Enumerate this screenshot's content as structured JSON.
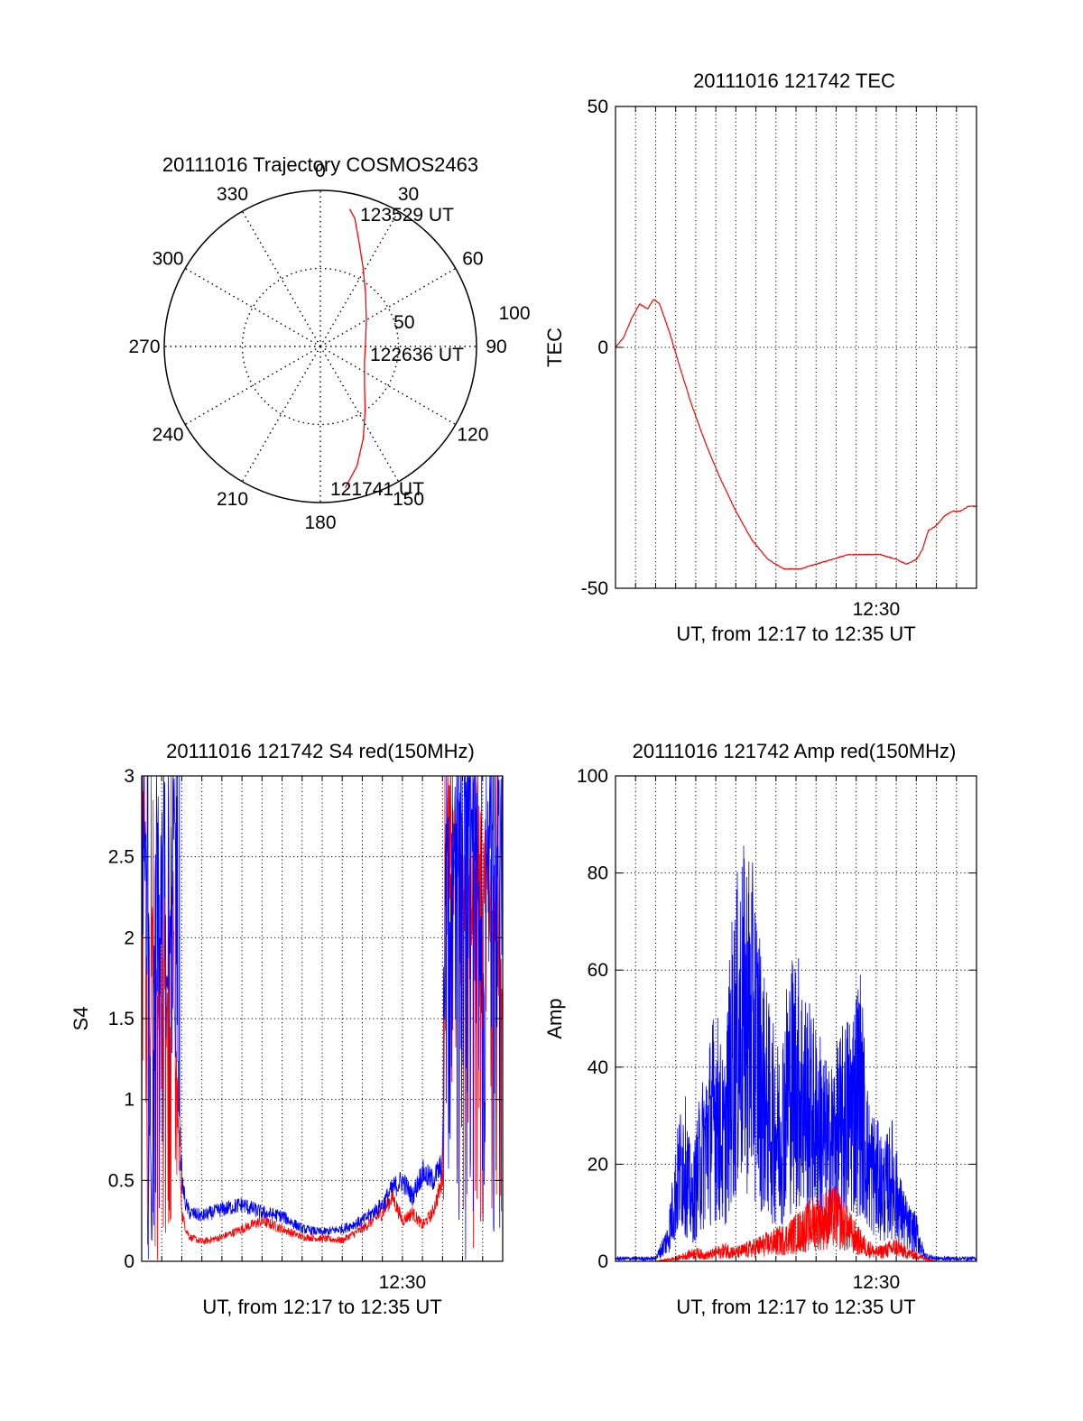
{
  "colors": {
    "primary": "#ff0000",
    "secondary": "#0000ff",
    "axis": "#000000",
    "grid": "#000000"
  },
  "chart_data": [
    {
      "id": "trajectory",
      "type": "scatter",
      "projection": "polar",
      "title": "20111016 Trajectory COSMOS2463",
      "azimuth_labels": [
        "0",
        "30",
        "60",
        "90",
        "120",
        "150",
        "180",
        "210",
        "240",
        "270",
        "300",
        "330"
      ],
      "radius_labels": [
        "50",
        "100"
      ],
      "rlim": [
        0,
        100
      ],
      "grid": true,
      "annotations": [
        "123529 UT",
        "122636 UT",
        "121741 UT"
      ],
      "series": [
        {
          "color": "#ff0000",
          "azimuth_deg": [
            170,
            163,
            155,
            145,
            132,
            110,
            85,
            60,
            40,
            28,
            20,
            15,
            12
          ],
          "zenith_dist": [
            92,
            80,
            65,
            50,
            38,
            30,
            29,
            34,
            45,
            58,
            72,
            85,
            90
          ]
        }
      ]
    },
    {
      "id": "tec",
      "type": "line",
      "title": "20111016 121742 TEC",
      "xlabel": "UT, from 12:17 to 12:35 UT",
      "ylabel": "TEC",
      "xlim": [
        0,
        18
      ],
      "ylim": [
        -50,
        50
      ],
      "yticks": [
        "-50",
        "0",
        "50"
      ],
      "xtick_labels": [
        {
          "x": 13,
          "label": "12:30"
        }
      ],
      "grid": true,
      "series": [
        {
          "color": "#ff0000",
          "x": [
            0.0,
            0.4,
            0.8,
            1.2,
            1.6,
            1.9,
            2.2,
            2.7,
            3.2,
            3.8,
            4.5,
            5.2,
            6.0,
            6.8,
            7.6,
            8.4,
            9.2,
            10.0,
            10.8,
            11.6,
            12.4,
            13.2,
            14.0,
            14.5,
            15.0,
            15.3,
            15.6,
            16.0,
            16.4,
            16.8,
            17.2,
            17.6,
            18.0
          ],
          "y": [
            0,
            2,
            6,
            9,
            8,
            10,
            9,
            3,
            -4,
            -12,
            -20,
            -27,
            -34,
            -40,
            -44,
            -46,
            -46,
            -45,
            -44,
            -43,
            -43,
            -43,
            -44,
            -45,
            -44,
            -42,
            -38,
            -37,
            -35,
            -34,
            -34,
            -33,
            -33
          ]
        }
      ]
    },
    {
      "id": "s4",
      "type": "line",
      "title": "20111016 121742 S4 red(150MHz)",
      "xlabel": "UT, from 12:17 to 12:35 UT",
      "ylabel": "S4",
      "xlim": [
        0,
        18
      ],
      "ylim": [
        0,
        3
      ],
      "yticks": [
        "0",
        "0.5",
        "1",
        "1.5",
        "2",
        "2.5",
        "3"
      ],
      "xtick_labels": [
        {
          "x": 13,
          "label": "12:30"
        }
      ],
      "grid": true,
      "series": [
        {
          "color": "#ff0000",
          "x": [
            0.0,
            0.1,
            0.2,
            0.3,
            0.5,
            0.7,
            0.9,
            1.1,
            1.3,
            1.6,
            1.8,
            2.0,
            2.2,
            2.4,
            3.0,
            4.0,
            5.0,
            6.0,
            7.0,
            8.0,
            9.0,
            10.0,
            11.0,
            12.0,
            12.5,
            13.0,
            13.5,
            14.0,
            14.5,
            15.0,
            15.2,
            15.4,
            15.8,
            16.2,
            16.6,
            17.0,
            17.4,
            17.8,
            18.0
          ],
          "y": [
            3.0,
            2.6,
            2.2,
            0.0,
            2.0,
            1.6,
            1.7,
            1.4,
            1.5,
            1.8,
            0.9,
            0.3,
            0.2,
            0.15,
            0.12,
            0.15,
            0.2,
            0.25,
            0.2,
            0.15,
            0.14,
            0.13,
            0.2,
            0.3,
            0.4,
            0.25,
            0.3,
            0.22,
            0.3,
            0.5,
            2.2,
            2.4,
            2.6,
            2.1,
            2.4,
            2.5,
            2.3,
            1.9,
            1.7
          ]
        },
        {
          "color": "#0000ff",
          "x": [
            0.0,
            0.1,
            0.2,
            0.3,
            0.5,
            0.7,
            0.9,
            1.1,
            1.3,
            1.6,
            1.8,
            2.0,
            2.2,
            2.4,
            3.0,
            4.0,
            5.0,
            6.0,
            7.0,
            8.0,
            9.0,
            10.0,
            11.0,
            12.0,
            12.5,
            13.0,
            13.5,
            14.0,
            14.5,
            15.0,
            15.2,
            15.4,
            15.8,
            16.2,
            16.6,
            17.0,
            17.4,
            17.8,
            18.0
          ],
          "y": [
            1.2,
            3.0,
            2.4,
            3.0,
            0.0,
            3.0,
            1.8,
            3.0,
            1.5,
            3.0,
            1.2,
            0.5,
            0.35,
            0.3,
            0.28,
            0.32,
            0.35,
            0.3,
            0.28,
            0.2,
            0.18,
            0.2,
            0.25,
            0.35,
            0.45,
            0.5,
            0.4,
            0.55,
            0.5,
            0.6,
            3.0,
            2.3,
            3.0,
            2.8,
            3.0,
            1.5,
            3.0,
            2.6,
            2.9
          ]
        }
      ]
    },
    {
      "id": "amp",
      "type": "line",
      "title": "20111016 121742 Amp red(150MHz)",
      "xlabel": "UT, from 12:17 to 12:35 UT",
      "ylabel": "Amp",
      "xlim": [
        0,
        18
      ],
      "ylim": [
        0,
        100
      ],
      "yticks": [
        "0",
        "20",
        "40",
        "60",
        "80",
        "100"
      ],
      "xtick_labels": [
        {
          "x": 13,
          "label": "12:30"
        }
      ],
      "grid": true,
      "series": [
        {
          "color": "#0000ff",
          "x": [
            0.0,
            1.0,
            2.0,
            2.6,
            3.0,
            3.4,
            3.8,
            4.2,
            4.6,
            5.0,
            5.4,
            5.8,
            6.2,
            6.6,
            7.0,
            7.4,
            7.8,
            8.2,
            8.6,
            9.0,
            9.4,
            9.8,
            10.2,
            10.6,
            11.0,
            11.4,
            11.8,
            12.2,
            12.6,
            13.0,
            13.4,
            13.8,
            14.2,
            14.6,
            15.0,
            15.4,
            16.0,
            17.0,
            18.0
          ],
          "y": [
            1,
            1,
            1,
            8,
            25,
            38,
            20,
            35,
            45,
            55,
            40,
            72,
            84,
            88,
            78,
            60,
            50,
            45,
            62,
            67,
            58,
            52,
            48,
            40,
            45,
            50,
            55,
            62,
            35,
            30,
            25,
            30,
            18,
            12,
            10,
            2,
            1,
            1,
            1
          ]
        },
        {
          "color": "#ff0000",
          "x": [
            0.0,
            2.0,
            3.0,
            3.5,
            4.0,
            4.5,
            5.0,
            5.5,
            6.0,
            6.5,
            7.0,
            7.5,
            8.0,
            8.5,
            9.0,
            9.5,
            10.0,
            10.5,
            11.0,
            11.5,
            12.0,
            12.5,
            13.0,
            13.5,
            14.0,
            14.5,
            15.0,
            15.5,
            16.0,
            18.0
          ],
          "y": [
            0,
            0,
            1,
            2,
            3,
            2,
            3,
            4,
            3,
            4,
            5,
            6,
            7,
            8,
            10,
            12,
            14,
            15,
            16,
            12,
            8,
            5,
            3,
            4,
            5,
            3,
            2,
            1,
            0,
            0
          ]
        }
      ]
    }
  ]
}
